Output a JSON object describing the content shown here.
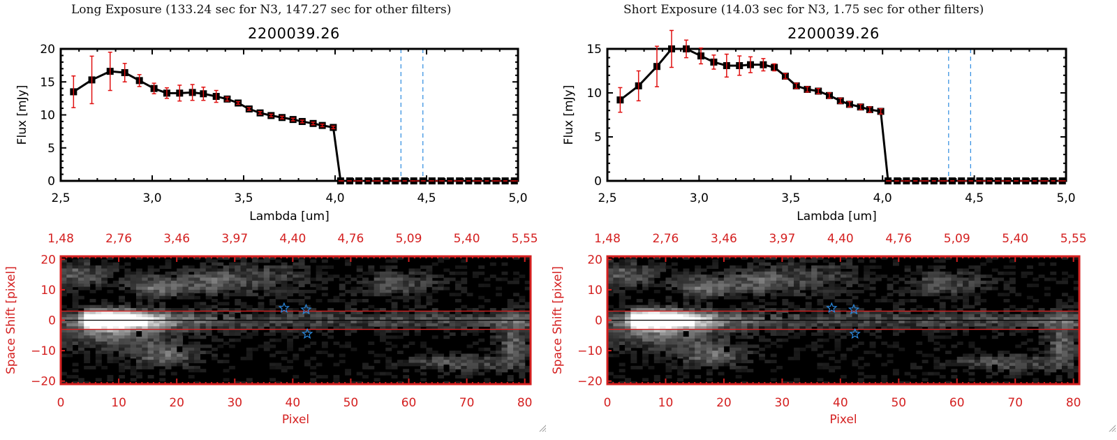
{
  "panels": [
    {
      "title": "Long Exposure (133.24 sec for N3, 147.27 sec for other filters)",
      "chart_title": "2200039.26"
    },
    {
      "title": "Short Exposure (14.03 sec for N3, 1.75 sec for other filters)",
      "chart_title": "2200039.26"
    }
  ],
  "chart_data": [
    {
      "type": "line",
      "title": "2200039.26",
      "panel": "Long Exposure (133.24 sec for N3, 147.27 sec for other filters)",
      "xlabel": "Lambda [um]",
      "ylabel": "Flux [mJy]",
      "xlim": [
        2.5,
        5.0
      ],
      "ylim": [
        0,
        20
      ],
      "xticks": [
        "2.5",
        "3.0",
        "3.5",
        "4.0",
        "4.5",
        "5.0"
      ],
      "yticks": [
        "0",
        "5",
        "10",
        "15",
        "20"
      ],
      "x": [
        2.57,
        2.67,
        2.77,
        2.85,
        2.93,
        3.01,
        3.08,
        3.15,
        3.22,
        3.28,
        3.35,
        3.41,
        3.47,
        3.53,
        3.59,
        3.65,
        3.71,
        3.77,
        3.82,
        3.88,
        3.93,
        3.99,
        4.03,
        4.08,
        4.13,
        4.18,
        4.23,
        4.28,
        4.33,
        4.38,
        4.43,
        4.48,
        4.53,
        4.58,
        4.63,
        4.68,
        4.73,
        4.78,
        4.83,
        4.88,
        4.93,
        4.98
      ],
      "y": [
        13.5,
        15.3,
        16.6,
        16.4,
        15.2,
        14.0,
        13.3,
        13.3,
        13.4,
        13.2,
        12.8,
        12.4,
        11.8,
        10.9,
        10.3,
        9.9,
        9.6,
        9.3,
        9.0,
        8.7,
        8.4,
        8.1,
        0,
        0,
        0,
        0,
        0,
        0,
        0,
        0,
        0,
        0,
        0,
        0,
        0,
        0,
        0,
        0,
        0,
        0,
        0,
        0
      ],
      "yerr": [
        2.4,
        3.6,
        2.9,
        1.4,
        0.9,
        0.8,
        0.8,
        1.2,
        1.2,
        1.0,
        0.9,
        0.3,
        0.2,
        0.2,
        0.2,
        0.2,
        0.2,
        0.2,
        0.2,
        0.2,
        0.2,
        0.2,
        0,
        0,
        0,
        0,
        0,
        0,
        0,
        0,
        0,
        0,
        0,
        0,
        0,
        0,
        0,
        0,
        0,
        0,
        0,
        0
      ],
      "vlines": [
        4.36,
        4.48
      ],
      "hline_zero": true,
      "series_colors": {
        "line": "#000000",
        "errorbar": "#e01010",
        "vline": "#2a8ae0",
        "zero": "#e01010"
      }
    },
    {
      "type": "line",
      "title": "2200039.26",
      "panel": "Short Exposure (14.03 sec for N3, 1.75 sec for other filters)",
      "xlabel": "Lambda [um]",
      "ylabel": "Flux [mJy]",
      "xlim": [
        2.5,
        5.0
      ],
      "ylim": [
        0,
        15
      ],
      "xticks": [
        "2.5",
        "3.0",
        "3.5",
        "4.0",
        "4.5",
        "5.0"
      ],
      "yticks": [
        "0",
        "5",
        "10",
        "15"
      ],
      "x": [
        2.57,
        2.67,
        2.77,
        2.85,
        2.93,
        3.01,
        3.08,
        3.15,
        3.22,
        3.28,
        3.35,
        3.41,
        3.47,
        3.53,
        3.59,
        3.65,
        3.71,
        3.77,
        3.82,
        3.88,
        3.93,
        3.99,
        4.03,
        4.08,
        4.13,
        4.18,
        4.23,
        4.28,
        4.33,
        4.38,
        4.43,
        4.48,
        4.53,
        4.58,
        4.63,
        4.68,
        4.73,
        4.78,
        4.83,
        4.88,
        4.93,
        4.98
      ],
      "y": [
        9.2,
        10.8,
        13.0,
        15.0,
        15.0,
        14.2,
        13.5,
        13.1,
        13.1,
        13.2,
        13.2,
        12.9,
        11.9,
        10.8,
        10.4,
        10.2,
        9.7,
        9.1,
        8.7,
        8.4,
        8.1,
        7.9,
        0,
        0,
        0,
        0,
        0,
        0,
        0,
        0,
        0,
        0,
        0,
        0,
        0,
        0,
        0,
        0,
        0,
        0,
        0,
        0
      ],
      "yerr": [
        1.4,
        1.7,
        2.3,
        2.1,
        1.0,
        0.9,
        0.8,
        1.3,
        1.1,
        0.9,
        0.7,
        0.4,
        0.3,
        0.3,
        0.3,
        0.3,
        0.3,
        0.3,
        0.3,
        0.3,
        0.3,
        0.3,
        0,
        0,
        0,
        0,
        0,
        0,
        0,
        0,
        0,
        0,
        0,
        0,
        0,
        0,
        0,
        0,
        0,
        0,
        0,
        0
      ],
      "vlines": [
        4.36,
        4.48
      ],
      "hline_zero": true,
      "series_colors": {
        "line": "#000000",
        "errorbar": "#e01010",
        "vline": "#2a8ae0",
        "zero": "#e01010"
      }
    },
    {
      "type": "heatmap",
      "panel": "Long Exposure",
      "xlabel": "Pixel",
      "ylabel": "Space Shift [pixel]",
      "xlim": [
        0,
        81
      ],
      "ylim": [
        -21,
        21
      ],
      "xticks": [
        "0",
        "10",
        "20",
        "30",
        "40",
        "50",
        "60",
        "70",
        "80"
      ],
      "yticks": [
        "-20",
        "-10",
        "0",
        "10",
        "20"
      ],
      "top_xticks": [
        "1.48",
        "2.76",
        "3.46",
        "3.97",
        "4.40",
        "4.76",
        "5.09",
        "5.40",
        "5.55"
      ],
      "aperture_lines": [
        3,
        -3
      ],
      "center_line": 0,
      "stars": [
        [
          38.5,
          4
        ],
        [
          42.3,
          3.5
        ],
        [
          42.5,
          -4.5
        ]
      ],
      "colormap": "gray",
      "axis_color": "#d42020",
      "star_color": "#2a8ae0"
    },
    {
      "type": "heatmap",
      "panel": "Short Exposure",
      "xlabel": "Pixel",
      "ylabel": "Space Shift [pixel]",
      "xlim": [
        0,
        81
      ],
      "ylim": [
        -21,
        21
      ],
      "xticks": [
        "0",
        "10",
        "20",
        "30",
        "40",
        "50",
        "60",
        "70",
        "80"
      ],
      "yticks": [
        "-20",
        "-10",
        "0",
        "10",
        "20"
      ],
      "top_xticks": [
        "1.48",
        "2.76",
        "3.46",
        "3.97",
        "4.40",
        "4.76",
        "5.09",
        "5.40",
        "5.55"
      ],
      "aperture_lines": [
        3,
        -3
      ],
      "center_line": 0,
      "stars": [
        [
          38.5,
          4
        ],
        [
          42.3,
          3.5
        ],
        [
          42.5,
          -4.5
        ]
      ],
      "colormap": "gray",
      "axis_color": "#d42020",
      "star_color": "#2a8ae0"
    }
  ]
}
